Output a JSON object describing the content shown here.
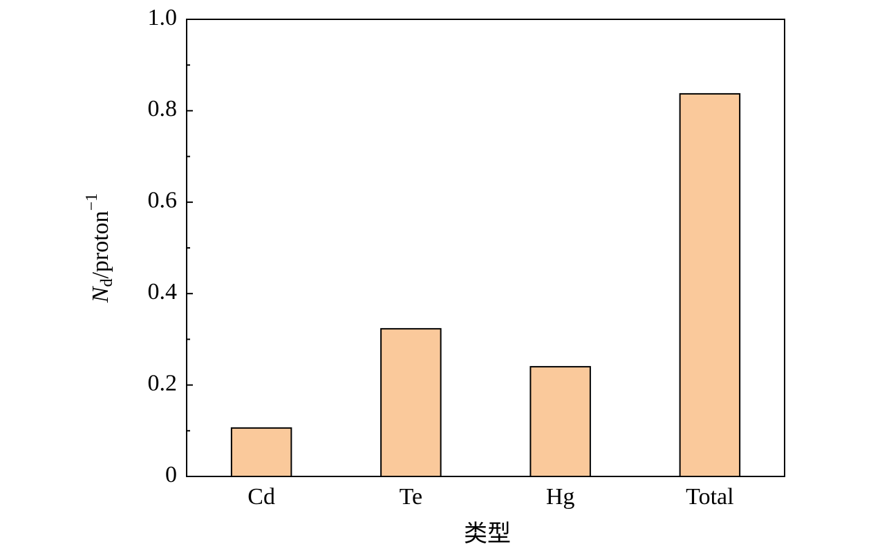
{
  "chart_data": {
    "type": "bar",
    "xlabel": "类型",
    "ylabel": {
      "main": "N",
      "sub": "d",
      "rest": "/proton",
      "sup": "−1"
    },
    "categories": [
      "Cd",
      "Te",
      "Hg",
      "Total"
    ],
    "values": [
      0.106,
      0.323,
      0.24,
      0.837
    ],
    "color": "#fac99b",
    "ylim": [
      0,
      1
    ],
    "yticks": [
      0,
      0.2,
      0.4,
      0.6,
      0.8,
      {
        "value": 1,
        "label": "1.0"
      }
    ],
    "yminorticks": [
      0.1,
      0.3,
      0.5,
      0.7,
      0.9
    ]
  }
}
